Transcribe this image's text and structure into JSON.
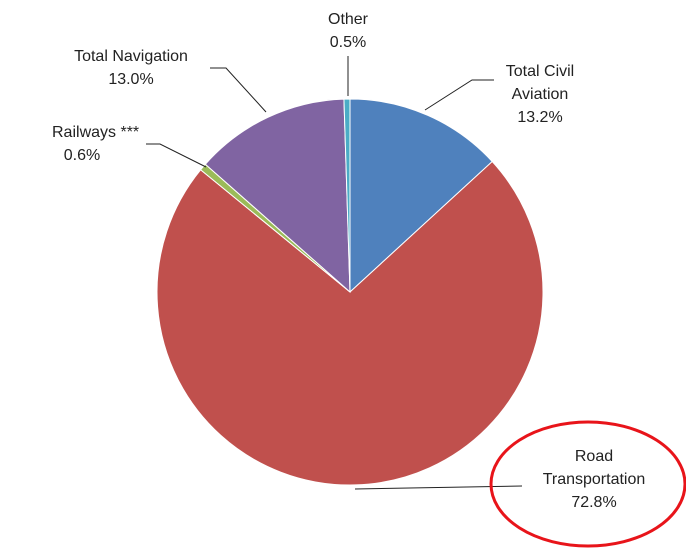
{
  "chart_data": {
    "type": "pie",
    "categories": [
      "Total Civil Aviation",
      "Road Transportation",
      "Railways ***",
      "Total Navigation",
      "Other"
    ],
    "values": [
      13.2,
      72.8,
      0.6,
      13.0,
      0.5
    ],
    "value_labels": [
      "13.2%",
      "72.8%",
      "0.6%",
      "13.0%",
      "0.5%"
    ],
    "colors": [
      "#4f81bd",
      "#c0504d",
      "#9bbb59",
      "#8064a2",
      "#4bacc6"
    ]
  }
}
